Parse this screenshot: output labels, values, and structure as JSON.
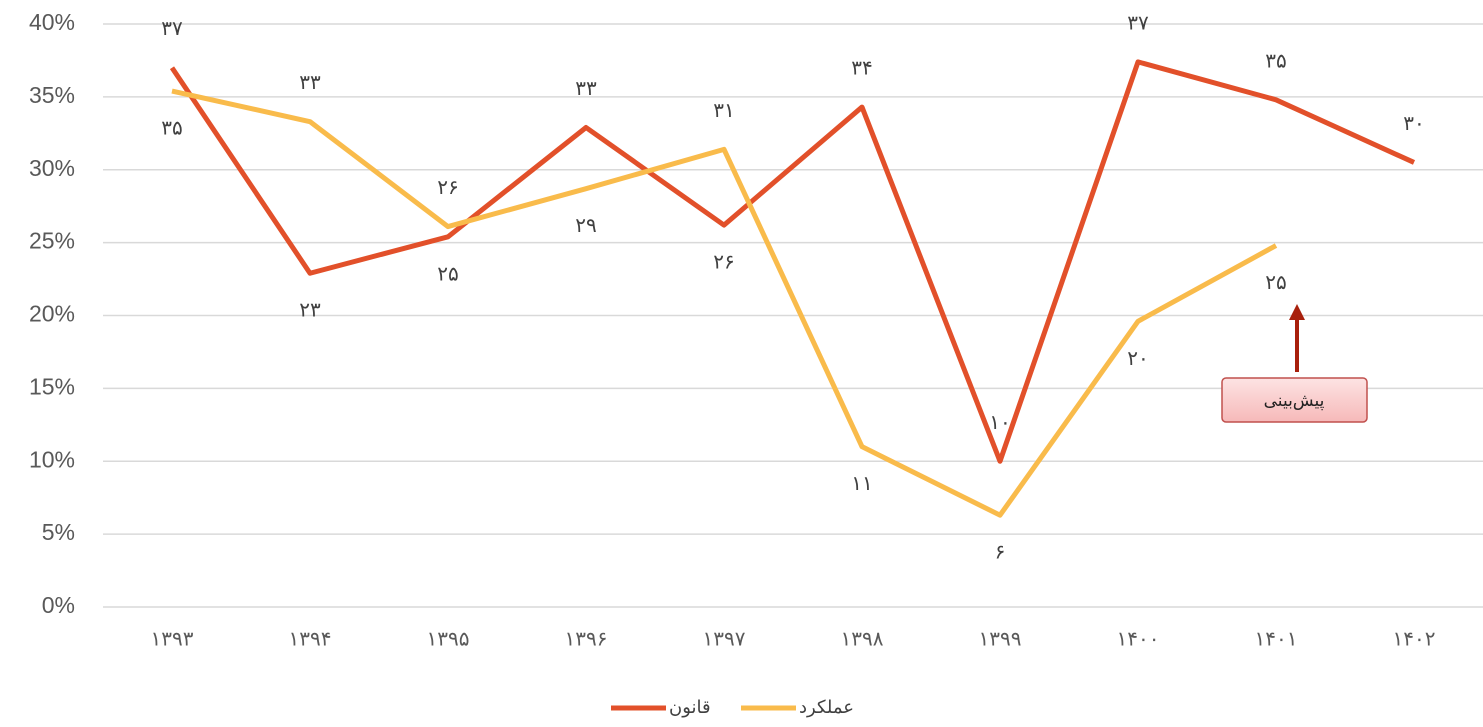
{
  "chart_data": {
    "type": "line",
    "categories": [
      "۱۳۹۳",
      "۱۳۹۴",
      "۱۳۹۵",
      "۱۳۹۶",
      "۱۳۹۷",
      "۱۳۹۸",
      "۱۳۹۹",
      "۱۴۰۰",
      "۱۴۰۱",
      "۱۴۰۲"
    ],
    "series": [
      {
        "name": "قانون",
        "color": "#e2502a",
        "values": [
          37,
          22.9,
          25.4,
          32.9,
          26.2,
          34.3,
          10,
          37.4,
          34.8,
          30.5
        ],
        "value_labels": [
          "۳۷",
          "۲۳",
          "۲۵",
          "۳۳",
          "۲۶",
          "۳۴",
          "۱۰",
          "۳۷",
          "۳۵",
          "۳۰"
        ]
      },
      {
        "name": "عملکرد",
        "color": "#f9bb4b",
        "values": [
          35.4,
          33.3,
          26.1,
          28.7,
          31.4,
          11,
          6.3,
          19.6,
          24.8,
          null
        ],
        "value_labels": [
          "۳۵",
          "۳۳",
          "۲۶",
          "۲۹",
          "۳۱",
          "۱۱",
          "۶",
          "۲۰",
          "۲۵",
          null
        ]
      }
    ],
    "ylim": [
      0,
      40
    ],
    "yticks": [
      {
        "value": 0,
        "label": "0%"
      },
      {
        "value": 5,
        "label": "5%"
      },
      {
        "value": 10,
        "label": "10%"
      },
      {
        "value": 15,
        "label": "15%"
      },
      {
        "value": 20,
        "label": "20%"
      },
      {
        "value": 25,
        "label": "25%"
      },
      {
        "value": 30,
        "label": "30%"
      },
      {
        "value": 35,
        "label": "35%"
      },
      {
        "value": 40,
        "label": "40%"
      }
    ],
    "grid": true,
    "legend": "bottom",
    "annotation": "پیش‌بینی"
  }
}
